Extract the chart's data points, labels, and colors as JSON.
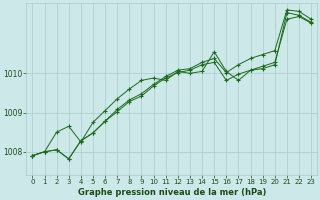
{
  "title": "Graphe pression niveau de la mer (hPa)",
  "bg_color": "#cde8e8",
  "grid_color": "#aacccc",
  "line_color": "#1a6b1a",
  "marker_color": "#1a6b1a",
  "label_color": "#1a4d1a",
  "xlim": [
    -0.5,
    23.5
  ],
  "ylim": [
    1007.4,
    1011.8
  ],
  "yticks": [
    1008,
    1009,
    1010
  ],
  "xticks": [
    0,
    1,
    2,
    3,
    4,
    5,
    6,
    7,
    8,
    9,
    10,
    11,
    12,
    13,
    14,
    15,
    16,
    17,
    18,
    19,
    20,
    21,
    22,
    23
  ],
  "series": [
    [
      1007.9,
      1008.0,
      1008.5,
      1008.65,
      1008.25,
      1008.75,
      1009.05,
      1009.35,
      1009.6,
      1009.82,
      1009.88,
      1009.82,
      1010.05,
      1010.0,
      1010.05,
      1010.55,
      1010.05,
      1009.82,
      1010.08,
      1010.12,
      1010.22,
      1011.55,
      1011.48,
      1011.3
    ],
    [
      1007.9,
      1008.0,
      1008.05,
      1007.82,
      1008.28,
      1008.48,
      1008.78,
      1009.02,
      1009.28,
      1009.42,
      1009.68,
      1009.88,
      1010.02,
      1010.08,
      1010.22,
      1010.28,
      1009.82,
      1009.98,
      1010.08,
      1010.18,
      1010.28,
      1011.38,
      1011.45,
      1011.28
    ],
    [
      1007.9,
      1008.0,
      1008.05,
      1007.82,
      1008.28,
      1008.48,
      1008.78,
      1009.08,
      1009.32,
      1009.48,
      1009.72,
      1009.92,
      1010.08,
      1010.12,
      1010.28,
      1010.38,
      1010.02,
      1010.22,
      1010.38,
      1010.48,
      1010.58,
      1011.62,
      1011.58,
      1011.38
    ]
  ]
}
